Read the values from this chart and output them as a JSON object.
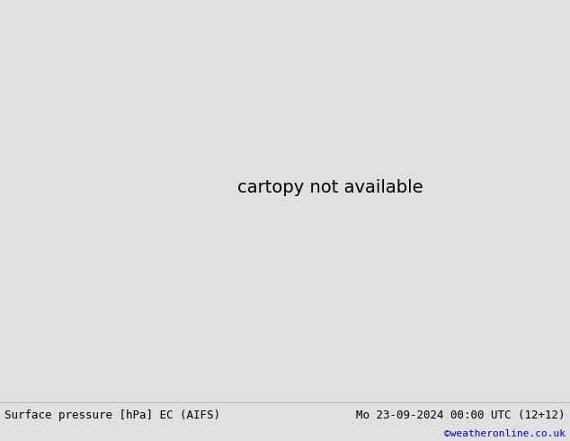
{
  "title_left": "Surface pressure [hPa] EC (AIFS)",
  "title_right": "Mo 23-09-2024 00:00 UTC (12+12)",
  "copyright": "©weatheronline.co.uk",
  "ocean_color": "#c8c8c8",
  "land_color": "#c8e8a0",
  "coast_color": "#888888",
  "footer_bg": "#e0e0e0",
  "red": "#dd0000",
  "blue": "#0000cc",
  "black": "#000000",
  "figsize": [
    6.34,
    4.9
  ],
  "dpi": 100,
  "extent": [
    -55,
    40,
    25,
    72
  ],
  "contour_lw": 1.1,
  "label_fontsize": 7
}
